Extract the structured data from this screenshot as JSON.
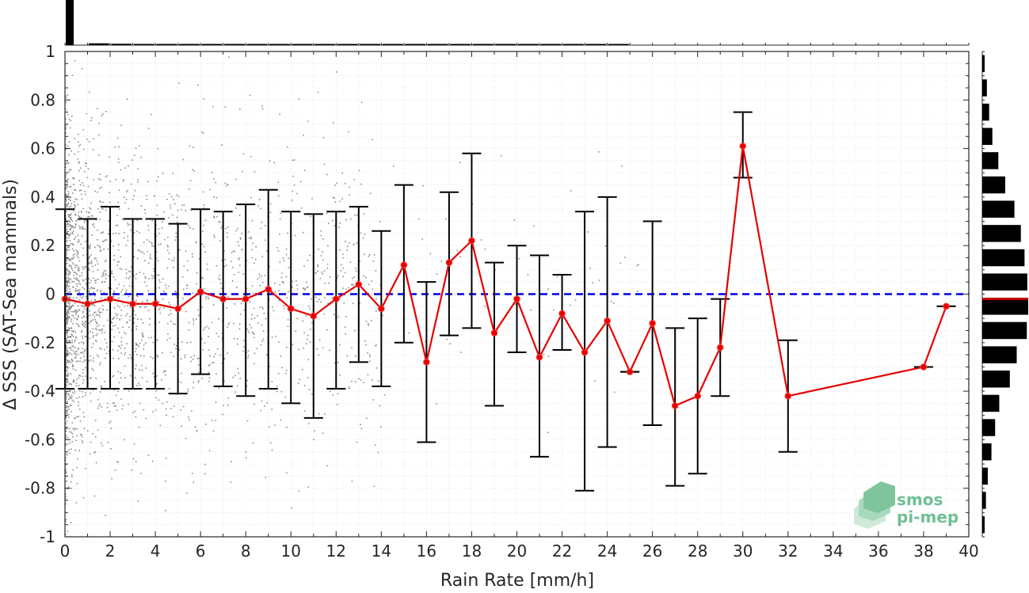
{
  "chart_data": {
    "type": "scatter",
    "xlabel": "Rain Rate [mm/h]",
    "ylabel": "Δ SSS (SAT-Sea mammals)",
    "xlim": [
      0,
      40
    ],
    "ylim": [
      -1,
      1
    ],
    "x_ticks": [
      0,
      2,
      4,
      6,
      8,
      10,
      12,
      14,
      16,
      18,
      20,
      22,
      24,
      26,
      28,
      30,
      32,
      34,
      36,
      38,
      40
    ],
    "y_ticks": [
      -1,
      -0.8,
      -0.6,
      -0.4,
      -0.2,
      0,
      0.2,
      0.4,
      0.6,
      0.8,
      1
    ],
    "x_tick_labels": [
      "0",
      "2",
      "4",
      "6",
      "8",
      "10",
      "12",
      "14",
      "16",
      "18",
      "20",
      "22",
      "24",
      "26",
      "28",
      "30",
      "32",
      "34",
      "36",
      "38",
      "40"
    ],
    "y_tick_labels": [
      "-1",
      "-0.8",
      "-0.6",
      "-0.4",
      "-0.2",
      "0",
      "0.2",
      "0.4",
      "0.6",
      "0.8",
      "1"
    ],
    "grid": true,
    "zero_line": {
      "y": 0,
      "color": "#0000e6",
      "style": "dashed"
    },
    "binned_mean": {
      "color": "#e60000",
      "x": [
        0,
        1,
        2,
        3,
        4,
        5,
        6,
        7,
        8,
        9,
        10,
        11,
        12,
        13,
        14,
        15,
        16,
        17,
        18,
        19,
        20,
        21,
        22,
        23,
        24,
        25,
        26,
        27,
        28,
        29,
        30,
        32,
        38,
        39
      ],
      "mean": [
        -0.02,
        -0.04,
        -0.02,
        -0.04,
        -0.04,
        -0.06,
        0.01,
        -0.02,
        -0.02,
        0.02,
        -0.06,
        -0.09,
        -0.02,
        0.04,
        -0.06,
        0.12,
        -0.28,
        0.13,
        0.22,
        -0.16,
        -0.02,
        -0.26,
        -0.08,
        -0.24,
        -0.11,
        -0.32,
        -0.12,
        -0.46,
        -0.42,
        -0.22,
        0.61,
        -0.42,
        -0.3,
        -0.05
      ],
      "upper": [
        0.35,
        0.31,
        0.36,
        0.31,
        0.31,
        0.29,
        0.35,
        0.34,
        0.37,
        0.43,
        0.34,
        0.33,
        0.34,
        0.36,
        0.26,
        0.45,
        0.05,
        0.42,
        0.58,
        0.13,
        0.2,
        0.16,
        0.08,
        0.34,
        0.4,
        -0.32,
        0.3,
        -0.14,
        -0.1,
        -0.02,
        0.75,
        -0.19,
        -0.3,
        -0.05
      ],
      "lower": [
        -0.39,
        -0.39,
        -0.39,
        -0.39,
        -0.39,
        -0.41,
        -0.33,
        -0.38,
        -0.42,
        -0.39,
        -0.45,
        -0.51,
        -0.39,
        -0.28,
        -0.38,
        -0.2,
        -0.61,
        -0.17,
        -0.14,
        -0.46,
        -0.24,
        -0.67,
        -0.23,
        -0.81,
        -0.63,
        -0.32,
        -0.54,
        -0.79,
        -0.74,
        -0.42,
        0.48,
        -0.65,
        -0.3,
        -0.05
      ]
    },
    "scatter_color": "#8c8c8c",
    "top_histogram": {
      "bin_width": 1,
      "counts": [
        1.0,
        0.04,
        0.03,
        0.025,
        0.02,
        0.018,
        0.016,
        0.014,
        0.012,
        0.011,
        0.01,
        0.009,
        0.008,
        0.007,
        0.006,
        0.005,
        0.004,
        0.004,
        0.003,
        0.003,
        0.003,
        0.002,
        0.002,
        0.002,
        0.002
      ]
    },
    "right_histogram": {
      "bin_width": 0.1,
      "centers": [
        -0.95,
        -0.85,
        -0.75,
        -0.65,
        -0.55,
        -0.45,
        -0.35,
        -0.25,
        -0.15,
        -0.05,
        0.05,
        0.15,
        0.25,
        0.35,
        0.45,
        0.55,
        0.65,
        0.75,
        0.85,
        0.95
      ],
      "counts": [
        0.05,
        0.08,
        0.12,
        0.2,
        0.28,
        0.37,
        0.6,
        0.75,
        0.97,
        1.0,
        0.98,
        0.92,
        0.84,
        0.7,
        0.5,
        0.35,
        0.22,
        0.15,
        0.1,
        0.05
      ],
      "mean_marker": -0.02,
      "mean_marker_color": "#e60000"
    }
  },
  "watermark": {
    "line1": "smos",
    "line2": "pi-mep",
    "color": "#3aa870"
  }
}
